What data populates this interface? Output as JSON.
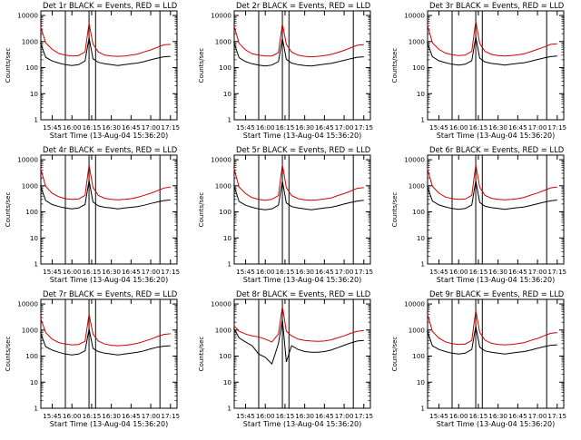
{
  "colors": {
    "events": "#000000",
    "lld": "#d00000",
    "background": "#ffffff"
  },
  "chart_data": [
    {
      "type": "line",
      "title": "Det 1r  BLACK = Events, RED = LLD",
      "xlabel": "Start Time (13-Aug-04 15:36:20)",
      "ylabel": "Counts/sec",
      "yscale": "log",
      "ylim": [
        1,
        15000
      ],
      "xlim": [
        "15:36:20",
        "17:20"
      ],
      "x_ticks": [
        "15:45",
        "16:00",
        "16:15",
        "16:30",
        "16:45",
        "17:00",
        "17:15"
      ],
      "y_ticks": [
        "1",
        "10",
        "100",
        "1000",
        "10000"
      ],
      "x": [
        "15:36",
        "15:40",
        "15:45",
        "15:50",
        "15:55",
        "16:00",
        "16:05",
        "16:10",
        "16:13",
        "16:16",
        "16:20",
        "16:25",
        "16:30",
        "16:35",
        "16:40",
        "16:45",
        "16:50",
        "16:55",
        "17:00",
        "17:05",
        "17:10",
        "17:15"
      ],
      "series": [
        {
          "name": "LLD",
          "values": [
            4000,
            900,
            500,
            350,
            300,
            280,
            290,
            400,
            5000,
            800,
            400,
            300,
            280,
            270,
            280,
            300,
            330,
            400,
            480,
            600,
            750,
            780
          ]
        },
        {
          "name": "Events",
          "values": [
            900,
            250,
            180,
            150,
            130,
            120,
            130,
            180,
            1400,
            220,
            160,
            140,
            130,
            120,
            130,
            140,
            150,
            170,
            200,
            230,
            260,
            270
          ]
        }
      ],
      "vertical_lines": [
        "15:55",
        "16:13",
        "16:18",
        "17:07"
      ]
    },
    {
      "type": "line",
      "title": "Det 2r  BLACK = Events, RED = LLD",
      "xlabel": "Start Time (13-Aug-04 15:36:20)",
      "ylabel": "Counts/sec",
      "yscale": "log",
      "ylim": [
        1,
        15000
      ],
      "xlim": [
        "15:36:20",
        "17:20"
      ],
      "x_ticks": [
        "15:45",
        "16:00",
        "16:15",
        "16:30",
        "16:45",
        "17:00",
        "17:15"
      ],
      "y_ticks": [
        "1",
        "10",
        "100",
        "1000",
        "10000"
      ],
      "x": [
        "15:36",
        "15:40",
        "15:45",
        "15:50",
        "15:55",
        "16:00",
        "16:05",
        "16:10",
        "16:13",
        "16:16",
        "16:20",
        "16:25",
        "16:30",
        "16:35",
        "16:40",
        "16:45",
        "16:50",
        "16:55",
        "17:00",
        "17:05",
        "17:10",
        "17:15"
      ],
      "series": [
        {
          "name": "LLD",
          "values": [
            4500,
            850,
            480,
            340,
            300,
            280,
            280,
            380,
            4800,
            780,
            390,
            300,
            270,
            260,
            270,
            290,
            320,
            380,
            460,
            580,
            720,
            760
          ]
        },
        {
          "name": "Events",
          "values": [
            1000,
            240,
            170,
            140,
            125,
            115,
            125,
            170,
            1300,
            210,
            150,
            130,
            120,
            115,
            125,
            135,
            145,
            165,
            190,
            220,
            250,
            260
          ]
        }
      ],
      "vertical_lines": [
        "15:55",
        "16:13",
        "16:18",
        "17:07"
      ]
    },
    {
      "type": "line",
      "title": "Det 3r  BLACK = Events, RED = LLD",
      "xlabel": "Start Time (13-Aug-04 15:36:20)",
      "ylabel": "Counts/sec",
      "yscale": "log",
      "ylim": [
        1,
        15000
      ],
      "xlim": [
        "15:36:20",
        "17:20"
      ],
      "x_ticks": [
        "15:45",
        "16:00",
        "16:15",
        "16:30",
        "16:45",
        "17:00",
        "17:15"
      ],
      "y_ticks": [
        "1",
        "10",
        "100",
        "1000",
        "10000"
      ],
      "x": [
        "15:36",
        "15:40",
        "15:45",
        "15:50",
        "15:55",
        "16:00",
        "16:05",
        "16:10",
        "16:13",
        "16:16",
        "16:20",
        "16:25",
        "16:30",
        "16:35",
        "16:40",
        "16:45",
        "16:50",
        "16:55",
        "17:00",
        "17:05",
        "17:10",
        "17:15"
      ],
      "series": [
        {
          "name": "LLD",
          "values": [
            4800,
            900,
            500,
            360,
            310,
            290,
            300,
            420,
            6000,
            850,
            420,
            320,
            290,
            280,
            290,
            310,
            340,
            410,
            500,
            620,
            780,
            820
          ]
        },
        {
          "name": "Events",
          "values": [
            950,
            260,
            185,
            155,
            135,
            125,
            135,
            185,
            1500,
            230,
            165,
            145,
            135,
            125,
            135,
            145,
            155,
            175,
            205,
            235,
            265,
            280
          ]
        }
      ],
      "vertical_lines": [
        "15:55",
        "16:13",
        "16:18",
        "17:07"
      ]
    },
    {
      "type": "line",
      "title": "Det 4r  BLACK = Events, RED = LLD",
      "xlabel": "Start Time (13-Aug-04 15:36:20)",
      "ylabel": "Counts/sec",
      "yscale": "log",
      "ylim": [
        1,
        15000
      ],
      "xlim": [
        "15:36:20",
        "17:20"
      ],
      "x_ticks": [
        "15:45",
        "16:00",
        "16:15",
        "16:30",
        "16:45",
        "17:00",
        "17:15"
      ],
      "y_ticks": [
        "1",
        "10",
        "100",
        "1000",
        "10000"
      ],
      "x": [
        "15:36",
        "15:40",
        "15:45",
        "15:50",
        "15:55",
        "16:00",
        "16:05",
        "16:10",
        "16:13",
        "16:16",
        "16:20",
        "16:25",
        "16:30",
        "16:35",
        "16:40",
        "16:45",
        "16:50",
        "16:55",
        "17:00",
        "17:05",
        "17:10",
        "17:15"
      ],
      "series": [
        {
          "name": "LLD",
          "values": [
            5000,
            950,
            520,
            380,
            320,
            300,
            310,
            430,
            6200,
            870,
            430,
            330,
            300,
            290,
            300,
            320,
            360,
            430,
            520,
            650,
            820,
            900
          ]
        },
        {
          "name": "Events",
          "values": [
            1000,
            270,
            190,
            160,
            140,
            130,
            140,
            190,
            1600,
            240,
            170,
            150,
            140,
            130,
            140,
            150,
            160,
            180,
            210,
            240,
            270,
            290
          ]
        }
      ],
      "vertical_lines": [
        "15:55",
        "16:13",
        "16:18",
        "17:07"
      ]
    },
    {
      "type": "line",
      "title": "Det 5r  BLACK = Events, RED = LLD",
      "xlabel": "Start Time (13-Aug-04 15:36:20)",
      "ylabel": "Counts/sec",
      "yscale": "log",
      "ylim": [
        1,
        15000
      ],
      "xlim": [
        "15:36:20",
        "17:20"
      ],
      "x_ticks": [
        "15:45",
        "16:00",
        "16:15",
        "16:30",
        "16:45",
        "17:00",
        "17:15"
      ],
      "y_ticks": [
        "1",
        "10",
        "100",
        "1000",
        "10000"
      ],
      "x": [
        "15:36",
        "15:40",
        "15:45",
        "15:50",
        "15:55",
        "16:00",
        "16:05",
        "16:10",
        "16:13",
        "16:16",
        "16:20",
        "16:25",
        "16:30",
        "16:35",
        "16:40",
        "16:45",
        "16:50",
        "16:55",
        "17:00",
        "17:05",
        "17:10",
        "17:15"
      ],
      "series": [
        {
          "name": "LLD",
          "values": [
            5200,
            900,
            500,
            350,
            300,
            280,
            300,
            420,
            6400,
            860,
            420,
            320,
            290,
            280,
            290,
            310,
            340,
            420,
            500,
            630,
            800,
            850
          ]
        },
        {
          "name": "Events",
          "values": [
            1100,
            250,
            180,
            150,
            130,
            120,
            130,
            180,
            1500,
            220,
            160,
            140,
            130,
            120,
            130,
            140,
            150,
            170,
            200,
            230,
            260,
            280
          ]
        }
      ],
      "vertical_lines": [
        "15:55",
        "16:13",
        "16:18",
        "17:07"
      ]
    },
    {
      "type": "line",
      "title": "Det 6r  BLACK = Events, RED = LLD",
      "xlabel": "Start Time (13-Aug-04 15:36:20)",
      "ylabel": "Counts/sec",
      "yscale": "log",
      "ylim": [
        1,
        15000
      ],
      "xlim": [
        "15:36:20",
        "17:20"
      ],
      "x_ticks": [
        "15:45",
        "16:00",
        "16:15",
        "16:30",
        "16:45",
        "17:00",
        "17:15"
      ],
      "y_ticks": [
        "1",
        "10",
        "100",
        "1000",
        "10000"
      ],
      "x": [
        "15:36",
        "15:40",
        "15:45",
        "15:50",
        "15:55",
        "16:00",
        "16:05",
        "16:10",
        "16:13",
        "16:16",
        "16:20",
        "16:25",
        "16:30",
        "16:35",
        "16:40",
        "16:45",
        "16:50",
        "16:55",
        "17:00",
        "17:05",
        "17:10",
        "17:15"
      ],
      "series": [
        {
          "name": "LLD",
          "values": [
            5000,
            950,
            520,
            370,
            320,
            300,
            310,
            430,
            6300,
            880,
            430,
            330,
            300,
            290,
            300,
            320,
            360,
            440,
            530,
            660,
            830,
            900
          ]
        },
        {
          "name": "Events",
          "values": [
            1000,
            260,
            185,
            155,
            135,
            125,
            135,
            185,
            1550,
            230,
            165,
            145,
            135,
            125,
            135,
            145,
            155,
            175,
            205,
            235,
            265,
            285
          ]
        }
      ],
      "vertical_lines": [
        "15:55",
        "16:13",
        "16:18",
        "17:07"
      ]
    },
    {
      "type": "line",
      "title": "Det 7r  BLACK = Events, RED = LLD",
      "xlabel": "Start Time (13-Aug-04 15:36:20)",
      "ylabel": "Counts/sec",
      "yscale": "log",
      "ylim": [
        1,
        15000
      ],
      "xlim": [
        "15:36:20",
        "17:20"
      ],
      "x_ticks": [
        "15:45",
        "16:00",
        "16:15",
        "16:30",
        "16:45",
        "17:00",
        "17:15"
      ],
      "y_ticks": [
        "1",
        "10",
        "100",
        "1000",
        "10000"
      ],
      "x": [
        "15:36",
        "15:40",
        "15:45",
        "15:50",
        "15:55",
        "16:00",
        "16:05",
        "16:10",
        "16:13",
        "16:16",
        "16:20",
        "16:25",
        "16:30",
        "16:35",
        "16:40",
        "16:45",
        "16:50",
        "16:55",
        "17:00",
        "17:05",
        "17:10",
        "17:15"
      ],
      "series": [
        {
          "name": "LLD",
          "values": [
            3000,
            800,
            450,
            330,
            290,
            270,
            280,
            370,
            4000,
            700,
            380,
            290,
            260,
            250,
            260,
            280,
            310,
            370,
            450,
            560,
            680,
            720
          ]
        },
        {
          "name": "Events",
          "values": [
            800,
            230,
            170,
            140,
            120,
            110,
            120,
            160,
            1100,
            200,
            150,
            130,
            120,
            110,
            120,
            130,
            140,
            160,
            190,
            220,
            240,
            250
          ]
        }
      ],
      "vertical_lines": [
        "15:55",
        "16:13",
        "16:18",
        "17:07"
      ]
    },
    {
      "type": "line",
      "title": "Det 8r  BLACK = Events, RED = LLD",
      "xlabel": "Start Time (13-Aug-04 15:36:20)",
      "ylabel": "Counts/sec",
      "yscale": "log",
      "ylim": [
        1,
        15000
      ],
      "xlim": [
        "15:36:20",
        "17:20"
      ],
      "x_ticks": [
        "15:45",
        "16:00",
        "16:15",
        "16:30",
        "16:45",
        "17:00",
        "17:15"
      ],
      "y_ticks": [
        "1",
        "10",
        "100",
        "1000",
        "10000"
      ],
      "x": [
        "15:36",
        "15:40",
        "15:45",
        "15:50",
        "15:55",
        "16:00",
        "16:05",
        "16:10",
        "16:13",
        "16:16",
        "16:20",
        "16:25",
        "16:30",
        "16:35",
        "16:40",
        "16:45",
        "16:50",
        "16:55",
        "17:00",
        "17:05",
        "17:10",
        "17:15"
      ],
      "series": [
        {
          "name": "LLD",
          "values": [
            1500,
            900,
            700,
            600,
            550,
            450,
            350,
            700,
            8000,
            900,
            600,
            450,
            400,
            380,
            370,
            380,
            420,
            500,
            600,
            750,
            900,
            950
          ]
        },
        {
          "name": "Events",
          "values": [
            1200,
            500,
            350,
            250,
            120,
            90,
            50,
            300,
            2500,
            60,
            250,
            180,
            150,
            140,
            140,
            150,
            170,
            210,
            260,
            320,
            380,
            400
          ]
        }
      ],
      "vertical_lines": [
        "15:55",
        "16:13",
        "16:18",
        "17:07"
      ]
    },
    {
      "type": "line",
      "title": "Det 9r  BLACK = Events, RED = LLD",
      "xlabel": "Start Time (13-Aug-04 15:36:20)",
      "ylabel": "Counts/sec",
      "yscale": "log",
      "ylim": [
        1,
        15000
      ],
      "xlim": [
        "15:36:20",
        "17:20"
      ],
      "x_ticks": [
        "15:45",
        "16:00",
        "16:15",
        "16:30",
        "16:45",
        "17:00",
        "17:15"
      ],
      "y_ticks": [
        "1",
        "10",
        "100",
        "1000",
        "10000"
      ],
      "x": [
        "15:36",
        "15:40",
        "15:45",
        "15:50",
        "15:55",
        "16:00",
        "16:05",
        "16:10",
        "16:13",
        "16:16",
        "16:20",
        "16:25",
        "16:30",
        "16:35",
        "16:40",
        "16:45",
        "16:50",
        "16:55",
        "17:00",
        "17:05",
        "17:10",
        "17:15"
      ],
      "series": [
        {
          "name": "LLD",
          "values": [
            4600,
            880,
            490,
            350,
            300,
            280,
            290,
            400,
            5600,
            820,
            410,
            310,
            280,
            270,
            280,
            300,
            330,
            400,
            480,
            600,
            750,
            800
          ]
        },
        {
          "name": "Events",
          "values": [
            950,
            250,
            180,
            150,
            130,
            120,
            130,
            180,
            1400,
            220,
            160,
            140,
            130,
            120,
            130,
            140,
            150,
            170,
            200,
            230,
            260,
            270
          ]
        }
      ],
      "vertical_lines": [
        "15:55",
        "16:13",
        "16:18",
        "17:07"
      ]
    }
  ]
}
